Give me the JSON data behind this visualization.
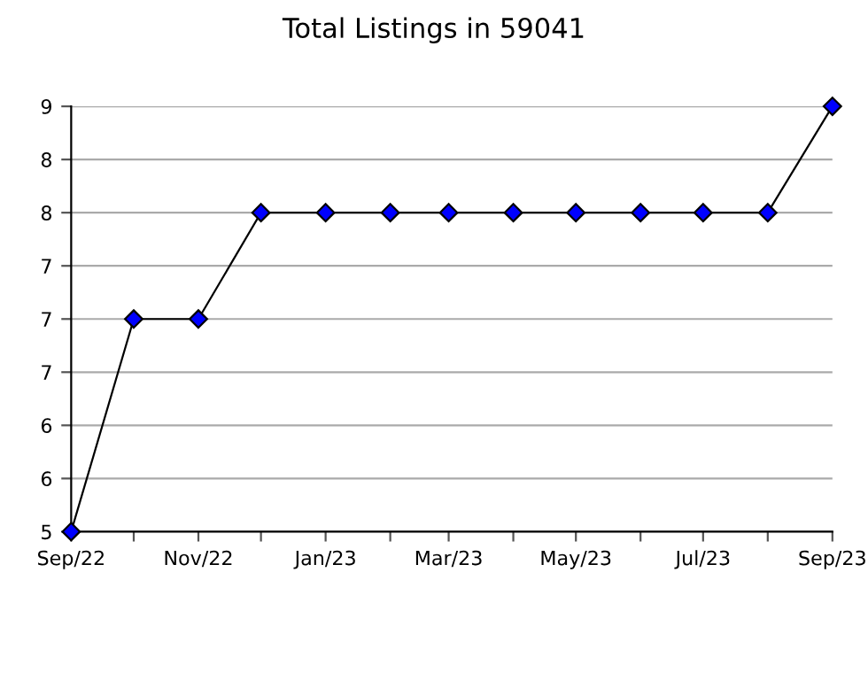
{
  "chart_data": {
    "type": "line",
    "title": "Total Listings in 59041",
    "x": [
      "2022-09",
      "2022-10",
      "2022-11",
      "2022-12",
      "2023-01",
      "2023-02",
      "2023-03",
      "2023-04",
      "2023-05",
      "2023-06",
      "2023-07",
      "2023-08",
      "2023-09"
    ],
    "series": [
      {
        "color": "#0000ff",
        "values": [
          5,
          7,
          7,
          8,
          8,
          8,
          8,
          8,
          8,
          8,
          8,
          8,
          9
        ]
      }
    ],
    "xlim": [
      "2022-09",
      "2023-09"
    ],
    "xticks": [
      {
        "value": "2022-09",
        "label": "Sep/22"
      },
      {
        "value": "2022-10",
        "label": null
      },
      {
        "value": "2022-11",
        "label": "Nov/22"
      },
      {
        "value": "2022-12",
        "label": null
      },
      {
        "value": "2023-01",
        "label": "Jan/23"
      },
      {
        "value": "2023-02",
        "label": null
      },
      {
        "value": "2023-03",
        "label": "Mar/23"
      },
      {
        "value": "2023-04",
        "label": null
      },
      {
        "value": "2023-05",
        "label": "May/23"
      },
      {
        "value": "2023-06",
        "label": null
      },
      {
        "value": "2023-07",
        "label": "Jul/23"
      },
      {
        "value": "2023-08",
        "label": null
      },
      {
        "value": "2023-09",
        "label": "Sep/23"
      }
    ],
    "ylim": [
      5,
      9
    ],
    "yticks": [
      5,
      {
        "value": 5.5,
        "label": "6"
      },
      6,
      {
        "value": 6.5,
        "label": "7"
      },
      7,
      {
        "value": 7.5,
        "label": "7"
      },
      8,
      {
        "value": 8.5,
        "label": "8"
      },
      9
    ],
    "grid": "y",
    "marker": "diamond",
    "line_style": "solid"
  }
}
